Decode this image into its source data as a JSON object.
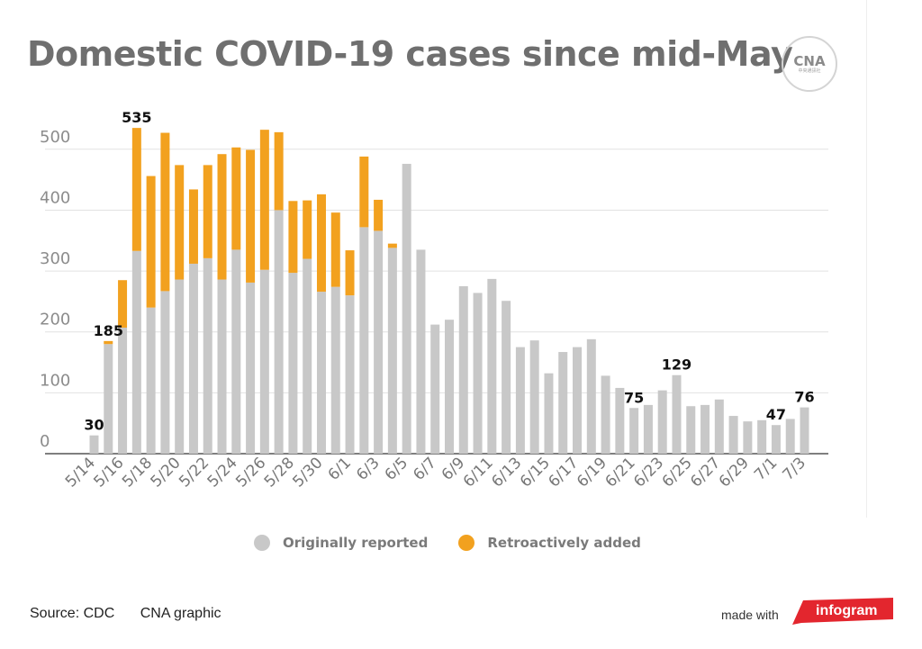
{
  "title": "Domestic COVID-19 cases since mid-May",
  "logo": {
    "mark": "CNA",
    "sub": "中央通訊社"
  },
  "legend": [
    {
      "label": "Originally reported",
      "color": "#c8c8c8"
    },
    {
      "label": "Retroactively added",
      "color": "#f2a11f"
    }
  ],
  "footer": {
    "source": "Source: CDC",
    "credit": "CNA graphic",
    "made_with": "made with",
    "brand": "infogram",
    "brand_color": "#e3262e"
  },
  "chart_data": {
    "type": "bar",
    "stacked": true,
    "title": "Domestic COVID-19 cases since mid-May",
    "xlabel": "",
    "ylabel": "",
    "ylim": [
      0,
      550
    ],
    "yticks": [
      0,
      100,
      200,
      300,
      400,
      500
    ],
    "grid": true,
    "legend_position": "bottom",
    "categories": [
      "5/14",
      "5/15",
      "5/16",
      "5/17",
      "5/18",
      "5/19",
      "5/20",
      "5/21",
      "5/22",
      "5/23",
      "5/24",
      "5/25",
      "5/26",
      "5/27",
      "5/28",
      "5/29",
      "5/30",
      "5/31",
      "6/1",
      "6/2",
      "6/3",
      "6/4",
      "6/5",
      "6/6",
      "6/7",
      "6/8",
      "6/9",
      "6/10",
      "6/11",
      "6/12",
      "6/13",
      "6/14",
      "6/15",
      "6/16",
      "6/17",
      "6/18",
      "6/19",
      "6/20",
      "6/21",
      "6/22",
      "6/23",
      "6/24",
      "6/25",
      "6/26",
      "6/27",
      "6/28",
      "6/29",
      "6/30",
      "7/1",
      "7/2",
      "7/3"
    ],
    "tick_labels": [
      "5/14",
      "5/16",
      "5/18",
      "5/20",
      "5/22",
      "5/24",
      "5/26",
      "5/28",
      "5/30",
      "6/1",
      "6/3",
      "6/5",
      "6/7",
      "6/9",
      "6/11",
      "6/13",
      "6/15",
      "6/17",
      "6/19",
      "6/21",
      "6/23",
      "6/25",
      "6/27",
      "6/29",
      "7/1",
      "7/3"
    ],
    "series": [
      {
        "name": "Originally reported",
        "color": "#c8c8c8",
        "values": [
          30,
          180,
          207,
          333,
          240,
          267,
          286,
          312,
          321,
          286,
          335,
          281,
          302,
          400,
          297,
          320,
          266,
          274,
          260,
          372,
          366,
          338,
          476,
          335,
          212,
          220,
          275,
          264,
          287,
          251,
          175,
          186,
          132,
          167,
          175,
          188,
          128,
          108,
          75,
          80,
          104,
          129,
          78,
          80,
          89,
          62,
          53,
          55,
          47,
          57,
          76
        ]
      },
      {
        "name": "Retroactively added",
        "color": "#f2a11f",
        "values": [
          0,
          5,
          78,
          202,
          216,
          260,
          188,
          122,
          153,
          206,
          168,
          218,
          230,
          128,
          118,
          96,
          160,
          122,
          74,
          116,
          51,
          7,
          0,
          0,
          0,
          0,
          0,
          0,
          0,
          0,
          0,
          0,
          0,
          0,
          0,
          0,
          0,
          0,
          0,
          0,
          0,
          0,
          0,
          0,
          0,
          0,
          0,
          0,
          0,
          0,
          0
        ]
      }
    ],
    "data_labels": [
      {
        "category": "5/14",
        "text": "30"
      },
      {
        "category": "5/15",
        "text": "185"
      },
      {
        "category": "5/17",
        "text": "535"
      },
      {
        "category": "6/21",
        "text": "75"
      },
      {
        "category": "6/24",
        "text": "129"
      },
      {
        "category": "7/1",
        "text": "47"
      },
      {
        "category": "7/3",
        "text": "76"
      }
    ]
  }
}
